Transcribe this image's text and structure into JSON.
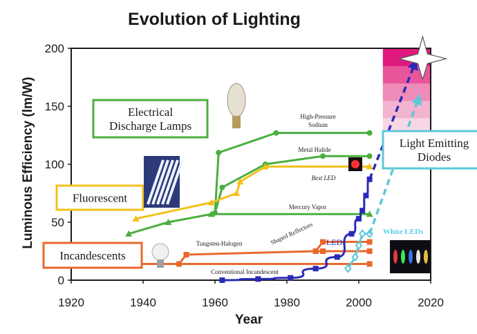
{
  "chart_data": {
    "type": "line",
    "title": "Evolution of Lighting",
    "xlabel": "Year",
    "ylabel": "Luminous Efficiency (lm/W)",
    "xlim": [
      1920,
      2020
    ],
    "ylim": [
      0,
      200
    ],
    "xticks": [
      1920,
      1940,
      1960,
      1980,
      2000,
      2020
    ],
    "yticks": [
      0,
      50,
      100,
      150,
      200
    ],
    "grid": false,
    "categories_boxes": [
      {
        "key": "discharge",
        "lines": [
          "Electrical",
          "Discharge Lamps"
        ],
        "color": "#4bae3f"
      },
      {
        "key": "fluorescent",
        "lines": [
          "Fluorescent"
        ],
        "color": "#f2c01a"
      },
      {
        "key": "incandescent",
        "lines": [
          "Incandescents"
        ],
        "color": "#e8682a"
      },
      {
        "key": "led",
        "lines": [
          "Light Emitting",
          "Diodes"
        ],
        "color": "#5cc8d8"
      }
    ],
    "annotations": {
      "hps": [
        "High-Pressure",
        "Sodium"
      ],
      "metal_halide": "Metal Halide",
      "best_led": "Best LED",
      "mercury": "Mercury Vapor",
      "tungsten": "Tungsten-Halogen",
      "shaped": "Shaped Reflectors",
      "conventional": "Conventional Incandescent",
      "leds": "LEDs",
      "white_leds": "White LEDs"
    },
    "series": [
      {
        "key": "high_pressure_sodium",
        "color": "#4bae3f",
        "marker": "circle",
        "x": [
          1960,
          1961,
          1977,
          2003
        ],
        "y": [
          58,
          110,
          127,
          127
        ]
      },
      {
        "key": "metal_halide",
        "color": "#4bae3f",
        "marker": "circle",
        "x": [
          1960,
          1962,
          1974,
          1990,
          2003
        ],
        "y": [
          58,
          80,
          100,
          107,
          107
        ]
      },
      {
        "key": "mercury_vapor",
        "color": "#4bae3f",
        "marker": "triangle",
        "x": [
          1936,
          1947,
          1959,
          2003
        ],
        "y": [
          40,
          50,
          57,
          57
        ]
      },
      {
        "key": "fluorescent",
        "color": "#f2c01a",
        "marker": "triangle",
        "x": [
          1938,
          1959,
          1966,
          1967,
          1974,
          2003
        ],
        "y": [
          53,
          67,
          75,
          85,
          98,
          98
        ]
      },
      {
        "key": "tungsten_halogen",
        "color": "#e8682a",
        "marker": "square",
        "x": [
          1950,
          1952,
          1988,
          1990,
          2003
        ],
        "y": [
          14,
          22,
          25,
          25,
          25
        ]
      },
      {
        "key": "shaped_reflectors",
        "color": "#e8682a",
        "marker": "square",
        "x": [
          1988,
          1990,
          2003
        ],
        "y": [
          25,
          33,
          33
        ]
      },
      {
        "key": "conventional_incandescent",
        "color": "#e8682a",
        "marker": "square",
        "x": [
          1939,
          2003
        ],
        "y": [
          14,
          14
        ]
      },
      {
        "key": "leds",
        "color": "#2a2ab8",
        "marker": "square",
        "x": [
          1962,
          1972,
          1981,
          1988,
          1994,
          1998,
          2000,
          2001,
          2002,
          2003
        ],
        "y": [
          0,
          1,
          2,
          10,
          20,
          40,
          53,
          60,
          73,
          87
        ]
      },
      {
        "key": "leds_projection",
        "color": "#2a2ab8",
        "marker": "none",
        "dashed": true,
        "x": [
          2003,
          2016
        ],
        "y": [
          87,
          190
        ]
      },
      {
        "key": "white_leds",
        "color": "#5cc8d8",
        "marker": "diamond",
        "x": [
          1997,
          1999,
          2000,
          2001,
          2003
        ],
        "y": [
          10,
          20,
          30,
          40,
          40
        ]
      },
      {
        "key": "white_leds_projection",
        "color": "#5cc8d8",
        "marker": "none",
        "dashed": true,
        "x": [
          2003,
          2017
        ],
        "y": [
          40,
          160
        ]
      }
    ],
    "gradient_band": {
      "x": [
        2004,
        2020
      ],
      "colors": [
        "#ffffff",
        "#f8d6e6",
        "#f3b4d0",
        "#ee8bb8",
        "#e8559b",
        "#e0197f"
      ]
    }
  }
}
